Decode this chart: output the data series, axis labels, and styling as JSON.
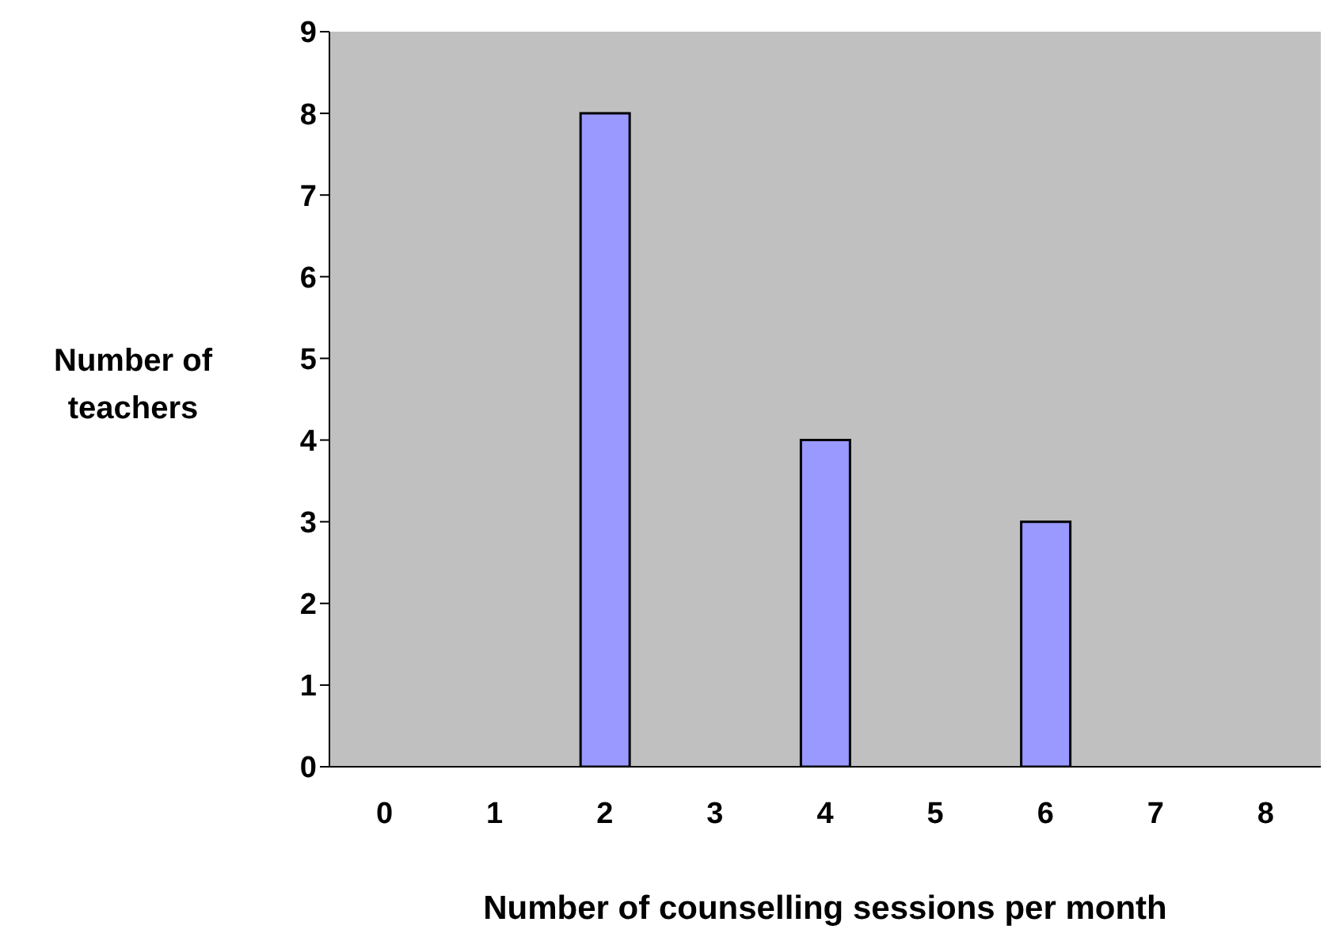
{
  "chart_data": {
    "type": "bar",
    "xlabel": "Number of counselling sessions per month",
    "ylabel": "Number of teachers",
    "categories": [
      "0",
      "1",
      "2",
      "3",
      "4",
      "5",
      "6",
      "7",
      "8"
    ],
    "values": [
      0,
      0,
      8,
      0,
      4,
      0,
      3,
      0,
      0
    ],
    "color": "#9999ff",
    "ylim": [
      0,
      9
    ],
    "yticks": [
      0,
      1,
      2,
      3,
      4,
      5,
      6,
      7,
      8,
      9
    ],
    "grid": false
  }
}
